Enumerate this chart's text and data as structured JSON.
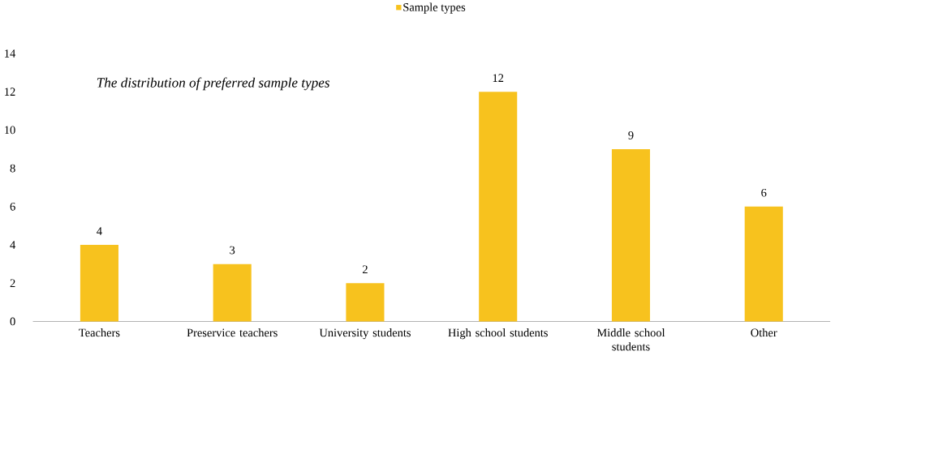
{
  "chart_data": {
    "type": "bar",
    "title": "The distribution of preferred sample types",
    "categories": [
      "Teachers",
      "Preservice teachers",
      "University students",
      "High school students",
      "Middle school students",
      "Other"
    ],
    "series": [
      {
        "name": "Sample types",
        "color": "#f7c21e",
        "values": [
          4,
          3,
          2,
          12,
          9,
          6
        ]
      }
    ],
    "ylim": [
      0,
      14
    ],
    "yticks": [
      0,
      2,
      4,
      6,
      8,
      10,
      12,
      14
    ],
    "data_labels": true,
    "legend": "top",
    "grid": false
  }
}
